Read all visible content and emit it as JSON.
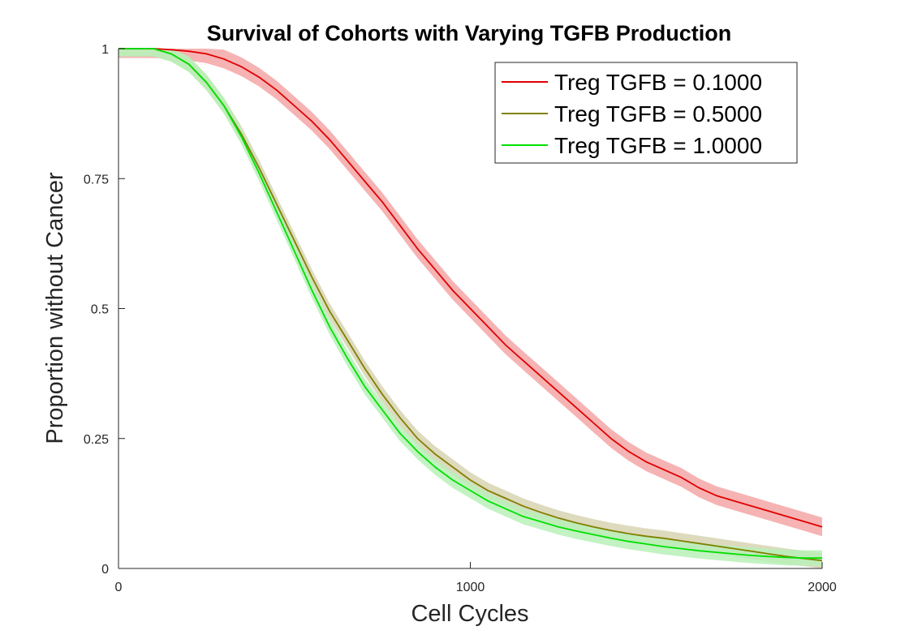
{
  "chart_data": {
    "type": "line",
    "title": "Survival of Cohorts with Varying TGFB Production",
    "xlabel": "Cell Cycles",
    "ylabel": "Proportion without Cancer",
    "xlim": [
      0,
      2000
    ],
    "ylim": [
      0,
      1
    ],
    "xticks": [
      0,
      1000,
      2000
    ],
    "xtick_labels": [
      "0",
      "1000",
      "2000"
    ],
    "yticks": [
      0,
      0.25,
      0.5,
      0.75,
      1
    ],
    "ytick_labels": [
      "0",
      "0.25",
      "0.5",
      "0.75",
      "1"
    ],
    "grid": false,
    "legend_position": "top-right",
    "confidence_band": true,
    "series": [
      {
        "name": "Treg TGFB = 0.1000",
        "color": "#e00000",
        "band_color": "#f4a6a6",
        "x": [
          0,
          100,
          150,
          200,
          250,
          300,
          350,
          400,
          450,
          500,
          550,
          600,
          650,
          700,
          750,
          800,
          850,
          900,
          950,
          1000,
          1050,
          1100,
          1150,
          1200,
          1250,
          1300,
          1350,
          1400,
          1450,
          1500,
          1550,
          1600,
          1650,
          1700,
          1750,
          1800,
          1850,
          1900,
          1950,
          2000
        ],
        "y": [
          1.0,
          1.0,
          0.998,
          0.995,
          0.99,
          0.98,
          0.965,
          0.945,
          0.92,
          0.89,
          0.86,
          0.825,
          0.785,
          0.745,
          0.705,
          0.66,
          0.615,
          0.575,
          0.535,
          0.5,
          0.465,
          0.43,
          0.4,
          0.37,
          0.34,
          0.31,
          0.28,
          0.25,
          0.225,
          0.205,
          0.19,
          0.175,
          0.155,
          0.14,
          0.13,
          0.12,
          0.11,
          0.1,
          0.09,
          0.08
        ],
        "band": 0.018
      },
      {
        "name": "Treg TGFB = 0.5000",
        "color": "#808000",
        "band_color": "#d7d4b3",
        "x": [
          0,
          100,
          150,
          200,
          250,
          300,
          350,
          400,
          450,
          500,
          550,
          600,
          650,
          700,
          750,
          800,
          850,
          900,
          950,
          1000,
          1050,
          1100,
          1150,
          1200,
          1250,
          1300,
          1350,
          1400,
          1450,
          1500,
          1550,
          1600,
          1650,
          1700,
          1750,
          1800,
          1850,
          1900,
          1950,
          2000
        ],
        "y": [
          1.0,
          1.0,
          0.99,
          0.97,
          0.935,
          0.89,
          0.835,
          0.77,
          0.7,
          0.63,
          0.56,
          0.495,
          0.44,
          0.385,
          0.335,
          0.29,
          0.25,
          0.22,
          0.195,
          0.17,
          0.15,
          0.135,
          0.12,
          0.108,
          0.097,
          0.088,
          0.08,
          0.073,
          0.067,
          0.062,
          0.058,
          0.053,
          0.048,
          0.043,
          0.038,
          0.033,
          0.028,
          0.023,
          0.019,
          0.015
        ],
        "band": 0.015
      },
      {
        "name": "Treg TGFB = 1.0000",
        "color": "#00e000",
        "band_color": "#b8f0b8",
        "x": [
          0,
          100,
          150,
          200,
          250,
          300,
          350,
          400,
          450,
          500,
          550,
          600,
          650,
          700,
          750,
          800,
          850,
          900,
          950,
          1000,
          1050,
          1100,
          1150,
          1200,
          1250,
          1300,
          1350,
          1400,
          1450,
          1500,
          1550,
          1600,
          1650,
          1700,
          1750,
          1800,
          1850,
          1900,
          1950,
          2000
        ],
        "y": [
          1.0,
          1.0,
          0.99,
          0.97,
          0.935,
          0.89,
          0.83,
          0.76,
          0.685,
          0.61,
          0.535,
          0.465,
          0.405,
          0.35,
          0.305,
          0.26,
          0.225,
          0.195,
          0.17,
          0.15,
          0.13,
          0.115,
          0.1,
          0.09,
          0.08,
          0.072,
          0.065,
          0.058,
          0.052,
          0.047,
          0.042,
          0.038,
          0.034,
          0.031,
          0.028,
          0.025,
          0.023,
          0.021,
          0.02,
          0.02
        ],
        "band": 0.015
      }
    ]
  }
}
